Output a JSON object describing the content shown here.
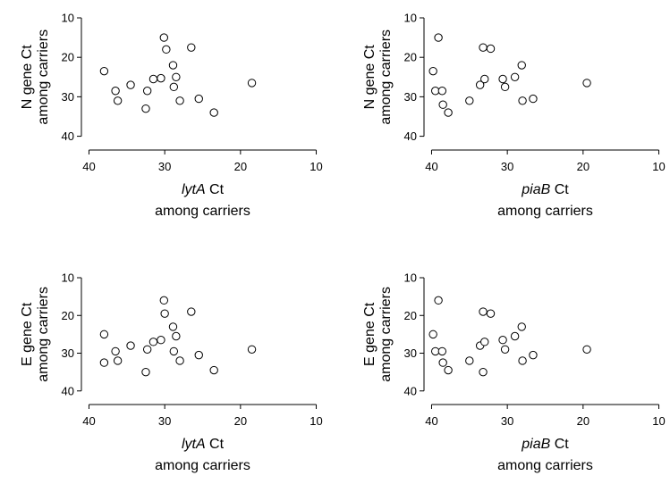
{
  "chart_data": [
    {
      "type": "scatter",
      "xlabel_italic": "lytA",
      "xlabel_rest": " Ct",
      "xlabel_line2": "among carriers",
      "ylabel_line1": "N gene Ct",
      "ylabel_line2": "among carriers",
      "xlim": [
        41,
        9
      ],
      "ylim": [
        10,
        41
      ],
      "xticks": [
        40,
        30,
        20,
        10
      ],
      "yticks": [
        10,
        20,
        30,
        40
      ],
      "x": [
        38.0,
        36.5,
        36.2,
        34.5,
        32.3,
        31.5,
        30.5,
        30.1,
        29.8,
        28.9,
        28.8,
        28.5,
        28.0,
        26.5,
        25.5,
        23.5,
        18.5,
        32.5
      ],
      "y": [
        23.5,
        28.5,
        31.0,
        27.0,
        28.5,
        25.5,
        25.3,
        15.0,
        18.0,
        22.0,
        27.5,
        25.0,
        31.0,
        17.5,
        30.5,
        34.0,
        26.5,
        33.0
      ]
    },
    {
      "type": "scatter",
      "xlabel_italic": "piaB",
      "xlabel_rest": " Ct",
      "xlabel_line2": "among carriers",
      "ylabel_line1": "N gene Ct",
      "ylabel_line2": "among carriers",
      "xlim": [
        41,
        9
      ],
      "ylim": [
        10,
        41
      ],
      "xticks": [
        40,
        30,
        20,
        10
      ],
      "yticks": [
        10,
        20,
        30,
        40
      ],
      "x": [
        39.8,
        39.1,
        39.5,
        38.6,
        38.5,
        37.8,
        35.0,
        33.6,
        33.2,
        33.0,
        32.2,
        30.6,
        30.3,
        29.0,
        28.1,
        28.0,
        26.6,
        19.5
      ],
      "y": [
        23.5,
        15.0,
        28.5,
        28.5,
        32.0,
        34.0,
        31.0,
        27.0,
        17.5,
        25.5,
        17.8,
        25.5,
        27.5,
        25.0,
        22.0,
        31.0,
        30.5,
        26.5
      ]
    },
    {
      "type": "scatter",
      "xlabel_italic": "lytA",
      "xlabel_rest": " Ct",
      "xlabel_line2": "among carriers",
      "ylabel_line1": "E gene Ct",
      "ylabel_line2": "among carriers",
      "xlim": [
        41,
        9
      ],
      "ylim": [
        10,
        41
      ],
      "xticks": [
        40,
        30,
        20,
        10
      ],
      "yticks": [
        10,
        20,
        30,
        40
      ],
      "x": [
        38.0,
        38.0,
        36.5,
        36.2,
        34.5,
        32.3,
        32.5,
        31.5,
        30.5,
        30.1,
        30.0,
        28.9,
        28.8,
        28.5,
        28.0,
        26.5,
        25.5,
        23.5,
        18.5
      ],
      "y": [
        25.0,
        32.5,
        29.5,
        32.0,
        28.0,
        29.0,
        35.0,
        27.0,
        26.5,
        16.0,
        19.5,
        23.0,
        29.5,
        25.5,
        32.0,
        19.0,
        30.5,
        34.5,
        29.0
      ]
    },
    {
      "type": "scatter",
      "xlabel_italic": "piaB",
      "xlabel_rest": " Ct",
      "xlabel_line2": "among carriers",
      "ylabel_line1": "E gene Ct",
      "ylabel_line2": "among carriers",
      "xlim": [
        41,
        9
      ],
      "ylim": [
        10,
        41
      ],
      "xticks": [
        40,
        30,
        20,
        10
      ],
      "yticks": [
        10,
        20,
        30,
        40
      ],
      "x": [
        39.8,
        39.1,
        39.5,
        38.6,
        38.5,
        37.8,
        35.0,
        33.6,
        33.2,
        33.2,
        33.0,
        32.2,
        30.6,
        30.3,
        29.0,
        28.1,
        28.0,
        26.6,
        19.5
      ],
      "y": [
        25.0,
        16.0,
        29.5,
        29.5,
        32.5,
        34.5,
        32.0,
        28.0,
        19.0,
        35.0,
        27.0,
        19.5,
        26.5,
        29.0,
        25.5,
        23.0,
        32.0,
        30.5,
        29.0
      ]
    }
  ]
}
